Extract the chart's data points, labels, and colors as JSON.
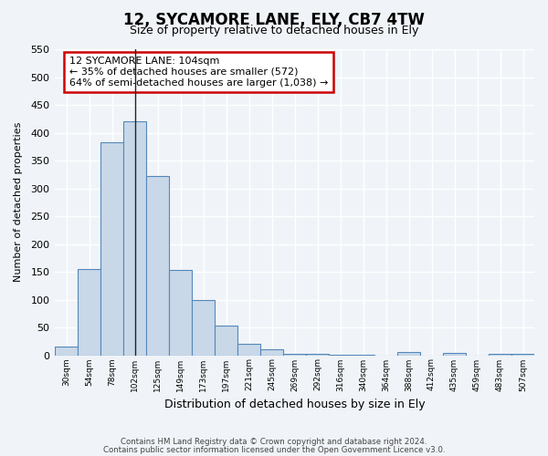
{
  "title": "12, SYCAMORE LANE, ELY, CB7 4TW",
  "subtitle": "Size of property relative to detached houses in Ely",
  "xlabel": "Distribution of detached houses by size in Ely",
  "ylabel": "Number of detached properties",
  "bin_labels": [
    "30sqm",
    "54sqm",
    "78sqm",
    "102sqm",
    "125sqm",
    "149sqm",
    "173sqm",
    "197sqm",
    "221sqm",
    "245sqm",
    "269sqm",
    "292sqm",
    "316sqm",
    "340sqm",
    "364sqm",
    "388sqm",
    "412sqm",
    "435sqm",
    "459sqm",
    "483sqm",
    "507sqm"
  ],
  "bar_heights": [
    15,
    155,
    382,
    420,
    322,
    153,
    100,
    54,
    20,
    10,
    3,
    3,
    1,
    1,
    0,
    5,
    0,
    4,
    0,
    3,
    3
  ],
  "bar_color": "#c8d8e8",
  "bar_edge_color": "#5588bb",
  "ylim": [
    0,
    550
  ],
  "yticks": [
    0,
    50,
    100,
    150,
    200,
    250,
    300,
    350,
    400,
    450,
    500,
    550
  ],
  "property_label": "12 SYCAMORE LANE: 104sqm",
  "annotation_line1": "← 35% of detached houses are smaller (572)",
  "annotation_line2": "64% of semi-detached houses are larger (1,038) →",
  "annotation_box_color": "#ffffff",
  "annotation_border_color": "#cc0000",
  "vline_x_bin": 3,
  "footnote1": "Contains HM Land Registry data © Crown copyright and database right 2024.",
  "footnote2": "Contains public sector information licensed under the Open Government Licence v3.0.",
  "bg_color": "#f0f4f8",
  "grid_color": "#ffffff"
}
